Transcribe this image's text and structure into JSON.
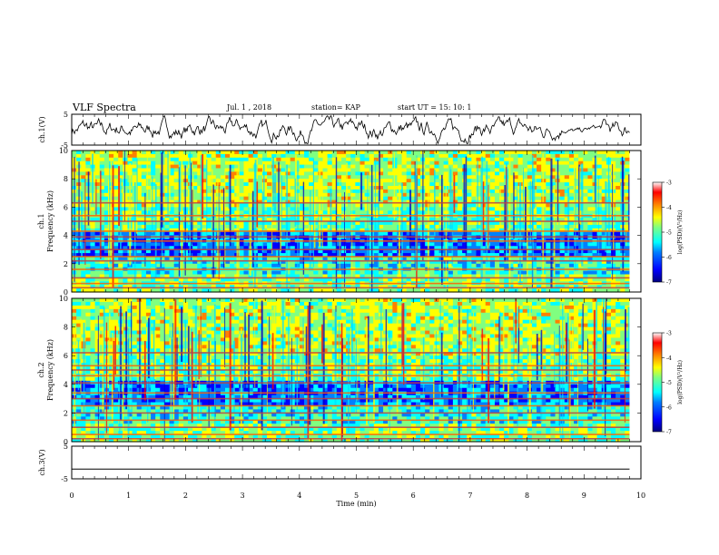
{
  "header": {
    "title": "VLF Spectra",
    "date": "Jul.  1  , 2018",
    "station": "station= KAP",
    "start_ut": "start  UT =   15: 10: 1"
  },
  "chart_data": [
    {
      "type": "line",
      "name": "channel-1-waveform",
      "ylabel": "ch.1(V)",
      "ylim": [
        -5,
        5
      ],
      "yticks": [
        "5",
        "-5"
      ],
      "xlim": [
        0,
        10
      ],
      "description_values": {
        "x_end_min": 9.8
      }
    },
    {
      "type": "heatmap",
      "name": "channel-1-spectrogram",
      "ylabel_lines": [
        "ch.1",
        "Frequency (kHz)"
      ],
      "ylim": [
        0,
        10
      ],
      "yticks": [
        "0",
        "2",
        "4",
        "6",
        "8",
        "10"
      ],
      "xlim": [
        0,
        9.8
      ],
      "colorbar": {
        "label": "log(PSD)(V²/Hz)",
        "range": [
          -7,
          -3
        ],
        "ticks": [
          "-3",
          "-4",
          "-5",
          "-6",
          "-7"
        ]
      },
      "band_lines_khz": [
        0.3,
        0.6,
        1.0,
        1.6,
        2.2,
        2.5,
        3.0,
        3.6,
        3.9,
        4.3,
        5.0,
        5.4,
        6.3
      ]
    },
    {
      "type": "heatmap",
      "name": "channel-2-spectrogram",
      "ylabel_lines": [
        "ch.2",
        "Frequency (kHz)"
      ],
      "ylim": [
        0,
        10
      ],
      "yticks": [
        "0",
        "2",
        "4",
        "6",
        "8",
        "10"
      ],
      "xlim": [
        0,
        9.8
      ],
      "colorbar": {
        "label": "log(PSD)(V²/Hz)",
        "range": [
          -7,
          -3
        ],
        "ticks": [
          "-3",
          "-4",
          "-5",
          "-6",
          "-7"
        ]
      },
      "band_lines_khz": [
        0.2,
        0.5,
        1.0,
        1.5,
        2.0,
        2.5,
        3.0,
        3.4,
        4.1,
        4.6,
        5.0,
        5.3,
        6.2
      ]
    },
    {
      "type": "line",
      "name": "channel-3-waveform",
      "ylabel": "ch.3(V)",
      "ylim": [
        -5,
        5
      ],
      "yticks": [
        "5",
        "-5"
      ],
      "xlim": [
        0,
        10
      ],
      "xlabel": "Time (min)",
      "xticks": [
        "0",
        "1",
        "2",
        "3",
        "4",
        "5",
        "6",
        "7",
        "8",
        "9",
        "10"
      ],
      "x": [
        0,
        9.8
      ],
      "y": [
        -2,
        -2
      ]
    }
  ],
  "colors": {
    "cmap": [
      "#00007f",
      "#0000ff",
      "#0080ff",
      "#00ffff",
      "#80ff80",
      "#ffff00",
      "#ff8000",
      "#ff0000",
      "#7f0000"
    ]
  }
}
